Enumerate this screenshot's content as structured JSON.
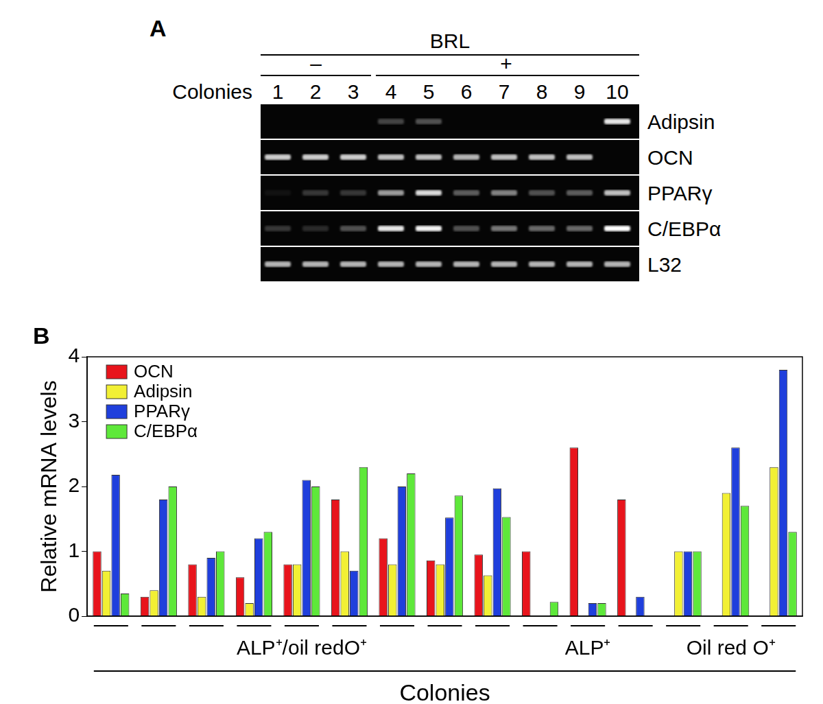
{
  "panel_labels": [
    "A",
    "B"
  ],
  "gel": {
    "title": "BRL",
    "row_label": "Colonies",
    "lanes": [
      "1",
      "2",
      "3",
      "4",
      "5",
      "6",
      "7",
      "8",
      "9",
      "10"
    ],
    "treatment": [
      {
        "label": "–",
        "first": 0,
        "last": 2
      },
      {
        "label": "+",
        "first": 3,
        "last": 9
      }
    ],
    "rows": [
      {
        "name": "Adipsin",
        "intensity": [
          0,
          0,
          0,
          0.25,
          0.3,
          0,
          0,
          0,
          0,
          0.9
        ]
      },
      {
        "name": "OCN",
        "intensity": [
          0.8,
          0.8,
          0.8,
          0.75,
          0.75,
          0.7,
          0.75,
          0.75,
          0.75,
          0
        ]
      },
      {
        "name": "PPARγ",
        "intensity": [
          0.05,
          0.2,
          0.2,
          0.6,
          0.85,
          0.35,
          0.5,
          0.3,
          0.35,
          0.75
        ]
      },
      {
        "name": "C/EBPα",
        "intensity": [
          0.2,
          0.15,
          0.3,
          0.9,
          0.95,
          0.3,
          0.45,
          0.4,
          0.4,
          1.0
        ]
      },
      {
        "name": "L32",
        "intensity": [
          0.7,
          0.7,
          0.7,
          0.7,
          0.7,
          0.7,
          0.7,
          0.7,
          0.7,
          0.7
        ]
      }
    ]
  },
  "chart_data": {
    "type": "bar",
    "categories": [
      null,
      null,
      null,
      null,
      null,
      null,
      null,
      null,
      null,
      null,
      null,
      null,
      null,
      null,
      null
    ],
    "series": [
      {
        "name": "OCN",
        "color": "#e8141c",
        "values": [
          1.0,
          0.3,
          0.8,
          0.6,
          0.8,
          1.8,
          1.2,
          0.86,
          0.95,
          1.0,
          2.6,
          1.8,
          0,
          0,
          0
        ]
      },
      {
        "name": "Adipsin",
        "color": "#f2f034",
        "values": [
          0.7,
          0.4,
          0.3,
          0.2,
          0.8,
          1.0,
          0.8,
          0.8,
          0.63,
          0,
          0,
          0,
          1.0,
          1.9,
          2.3
        ]
      },
      {
        "name": "PPARγ",
        "color": "#1f3fdc",
        "values": [
          2.18,
          1.8,
          0.9,
          1.2,
          2.1,
          0.7,
          2.0,
          1.52,
          1.97,
          0,
          0.2,
          0.3,
          1.0,
          2.6,
          3.8
        ]
      },
      {
        "name": "C/EBPα",
        "color": "#5ee83a",
        "values": [
          0.35,
          2.0,
          1.0,
          1.3,
          2.0,
          2.3,
          2.2,
          1.86,
          1.53,
          0.22,
          0.2,
          0,
          1.0,
          1.7,
          1.3
        ]
      }
    ],
    "ylim": [
      0,
      4
    ],
    "yticks": [
      0,
      1,
      2,
      3,
      4
    ],
    "y_label": "Relative mRNA levels",
    "x_label": "Colonies",
    "groups": [
      {
        "label": "ALP⁺/oil redO⁺",
        "first": 0,
        "last": 8
      },
      {
        "label": "ALP⁺",
        "first": 9,
        "last": 11
      },
      {
        "label": "Oil red O⁺",
        "first": 12,
        "last": 14
      }
    ],
    "legend": "upper left",
    "grid": false,
    "tick_labels": "y"
  }
}
